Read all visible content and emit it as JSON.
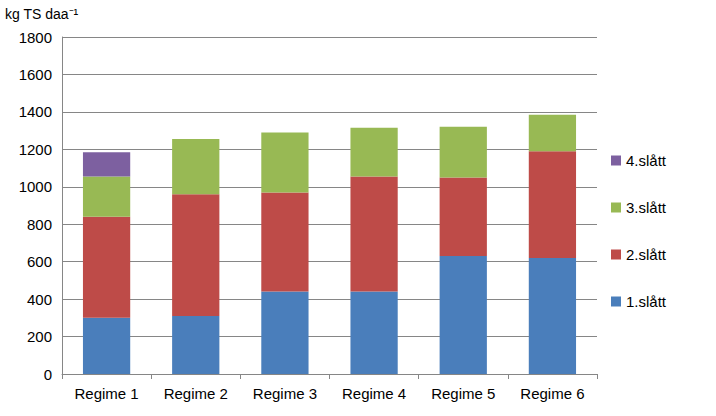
{
  "chart_data": {
    "type": "bar",
    "stacked": true,
    "ylabel": "kg TS daa⁻¹",
    "categories": [
      "Regime 1",
      "Regime 2",
      "Regime 3",
      "Regime 4",
      "Regime 5",
      "Regime 6"
    ],
    "series": [
      {
        "name": "1.slått",
        "color": "#4a7ebb",
        "values": [
          300,
          310,
          440,
          440,
          630,
          620
        ]
      },
      {
        "name": "2.slått",
        "color": "#be4b48",
        "values": [
          540,
          650,
          530,
          615,
          420,
          570
        ]
      },
      {
        "name": "3.slått",
        "color": "#98b954",
        "values": [
          215,
          295,
          320,
          260,
          270,
          195
        ]
      },
      {
        "name": "4.slått",
        "color": "#7d60a0",
        "values": [
          130,
          null,
          null,
          null,
          null,
          null
        ]
      }
    ],
    "ylim": [
      0,
      1800
    ],
    "yticks": [
      0,
      200,
      400,
      600,
      800,
      1000,
      1200,
      1400,
      1600,
      1800
    ],
    "grid": true,
    "legend": "right"
  }
}
